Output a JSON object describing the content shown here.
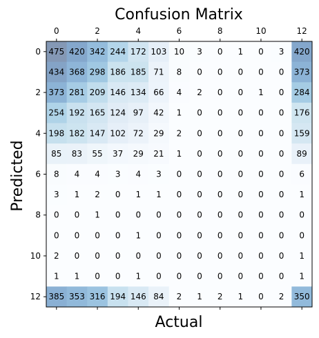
{
  "chart_data": {
    "type": "heatmap",
    "title": "Confusion Matrix",
    "xlabel": "Actual",
    "ylabel": "Predicted",
    "x_tick_labels": [
      "0",
      "2",
      "4",
      "6",
      "8",
      "10",
      "12"
    ],
    "y_tick_labels": [
      "0",
      "2",
      "4",
      "6",
      "8",
      "10",
      "12"
    ],
    "x_tick_indices": [
      0,
      2,
      4,
      6,
      8,
      10,
      12
    ],
    "y_tick_indices": [
      0,
      2,
      4,
      6,
      8,
      10,
      12
    ],
    "x_axis_position": "top",
    "colormap": "Blues",
    "alpha": 0.5,
    "matrix": [
      [
        475,
        420,
        342,
        244,
        172,
        103,
        10,
        3,
        0,
        1,
        0,
        3,
        420
      ],
      [
        434,
        368,
        298,
        186,
        185,
        71,
        8,
        0,
        0,
        0,
        0,
        0,
        373
      ],
      [
        373,
        281,
        209,
        146,
        134,
        66,
        4,
        2,
        0,
        0,
        1,
        0,
        284
      ],
      [
        254,
        192,
        165,
        124,
        97,
        42,
        1,
        0,
        0,
        0,
        0,
        0,
        176
      ],
      [
        198,
        182,
        147,
        102,
        72,
        29,
        2,
        0,
        0,
        0,
        0,
        0,
        159
      ],
      [
        85,
        83,
        55,
        37,
        29,
        21,
        1,
        0,
        0,
        0,
        0,
        0,
        89
      ],
      [
        8,
        4,
        4,
        3,
        4,
        3,
        0,
        0,
        0,
        0,
        0,
        0,
        6
      ],
      [
        3,
        1,
        2,
        0,
        1,
        1,
        0,
        0,
        0,
        0,
        0,
        0,
        1
      ],
      [
        0,
        0,
        1,
        0,
        0,
        0,
        0,
        0,
        0,
        0,
        0,
        0,
        0
      ],
      [
        0,
        0,
        0,
        0,
        1,
        0,
        0,
        0,
        0,
        0,
        0,
        0,
        0
      ],
      [
        2,
        0,
        0,
        0,
        0,
        0,
        0,
        0,
        0,
        0,
        0,
        0,
        1
      ],
      [
        1,
        1,
        0,
        0,
        1,
        0,
        0,
        0,
        0,
        0,
        0,
        0,
        1
      ],
      [
        385,
        353,
        316,
        194,
        146,
        84,
        2,
        1,
        2,
        1,
        0,
        2,
        350
      ]
    ]
  }
}
